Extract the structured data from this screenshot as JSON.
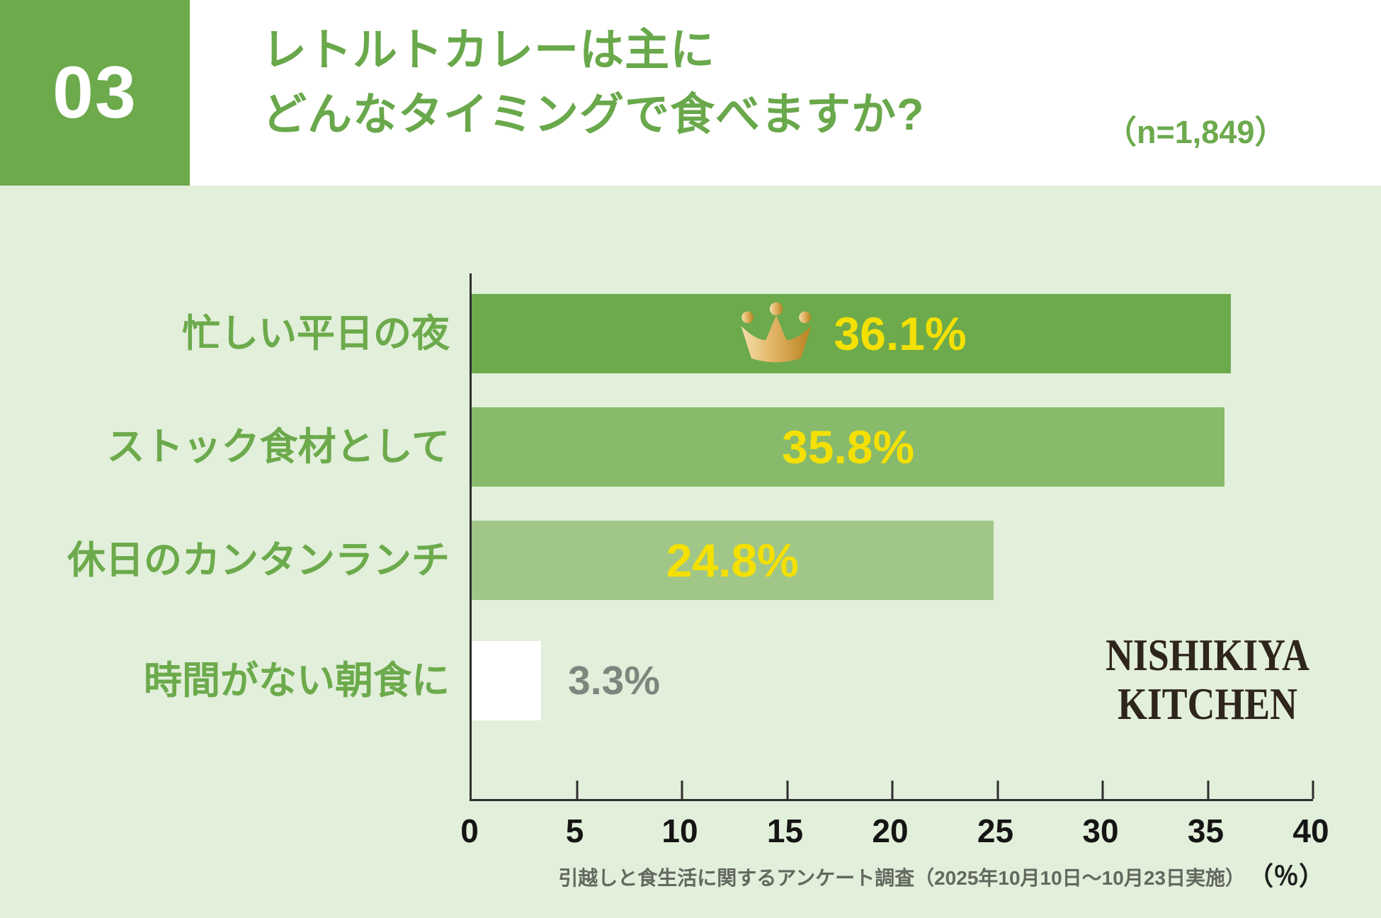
{
  "page": {
    "number": "03"
  },
  "header": {
    "title_line1": "レトルトカレーは主に",
    "title_line2": "どんなタイミングで食べますか?",
    "sample_size": "（n=1,849）"
  },
  "chart_data": {
    "type": "bar",
    "orientation": "horizontal",
    "categories": [
      "忙しい平日の夜",
      "ストック食材として",
      "休日のカンタンランチ",
      "時間がない朝食に"
    ],
    "values": [
      36.1,
      35.8,
      24.8,
      3.3
    ],
    "value_labels": [
      "36.1%",
      "35.8%",
      "24.8%",
      "3.3%"
    ],
    "bar_colors": [
      "#6CAA4C",
      "#87BB6B",
      "#A0C787",
      "#FFFFFF"
    ],
    "value_label_colors": [
      "#F5E003",
      "#F5E003",
      "#F5E003",
      "#7E877E"
    ],
    "xlim": [
      0,
      40
    ],
    "x_ticks": [
      0,
      5,
      10,
      15,
      20,
      25,
      30,
      35,
      40
    ],
    "x_tick_labels": [
      "0",
      "5",
      "10",
      "15",
      "20",
      "25",
      "30",
      "35",
      "40"
    ],
    "xlabel": "（％）",
    "grid": false,
    "legend": "none",
    "top_bar_badge": "gold-crown"
  },
  "footer": {
    "source": "引越しと食生活に関するアンケート調査（2025年10月10日～10月23日実施）",
    "unit": "（％）"
  },
  "logo": {
    "line1": "NISHIKIYA",
    "line2": "KITCHEN"
  },
  "colors": {
    "accent_green": "#6CAA4C",
    "background": "#E2EFDA",
    "header_bg": "#FFFFFF",
    "value_yellow": "#F5E003",
    "value_gray": "#7E877E",
    "axis": "#2E2E2E",
    "footnote_gray": "#63685F",
    "logo_brown": "#2E251B",
    "crown_gold": "#D9AC5C"
  }
}
